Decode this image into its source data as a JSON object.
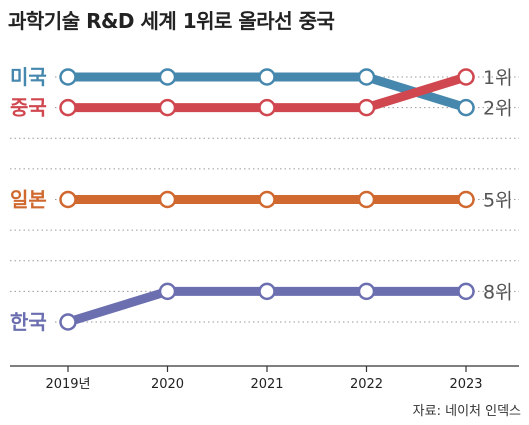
{
  "chart_data": {
    "type": "line",
    "title": "과학기술 R&D 세계 1위로 올라선 중국",
    "source": "자료: 네이처 인덱스",
    "x": [
      "2019년",
      "2020",
      "2021",
      "2022",
      "2023"
    ],
    "ylim": [
      1,
      9
    ],
    "y_inverted": true,
    "grid": true,
    "legend": "series labels at left of each line",
    "series": [
      {
        "name": "미국",
        "values": [
          1,
          1,
          1,
          1,
          2
        ],
        "end_label": "2위",
        "color": "#4587ad"
      },
      {
        "name": "중국",
        "values": [
          2,
          2,
          2,
          2,
          1
        ],
        "end_label": "1위",
        "color": "#d0474f"
      },
      {
        "name": "일본",
        "values": [
          5,
          5,
          5,
          5,
          5
        ],
        "end_label": "5위",
        "color": "#d0692f"
      },
      {
        "name": "한국",
        "values": [
          9,
          8,
          8,
          8,
          8
        ],
        "end_label": "8위",
        "color": "#6b6fb0"
      }
    ]
  }
}
